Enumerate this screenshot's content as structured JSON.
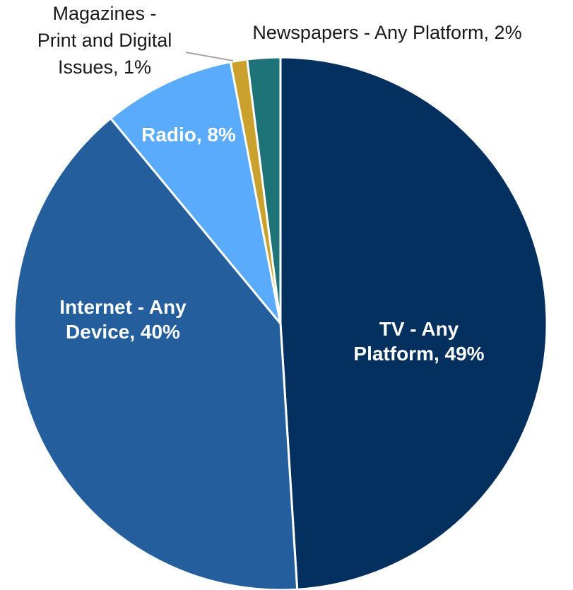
{
  "chart_data": {
    "type": "pie",
    "start_angle_deg": 0,
    "direction": "clockwise",
    "slices": [
      {
        "label_lines": [
          "TV - Any",
          "Platform, 49%"
        ],
        "value": 49,
        "color": "#04305f"
      },
      {
        "label_lines": [
          "Internet - Any",
          "Device, 40%"
        ],
        "value": 40,
        "color": "#245e9d"
      },
      {
        "label_lines": [
          "Radio, 8%"
        ],
        "value": 8,
        "color": "#5aabfb"
      },
      {
        "label_lines": [
          "Magazines -",
          "Print and Digital",
          "Issues, 1%"
        ],
        "value": 1,
        "color": "#c9a12c"
      },
      {
        "label_lines": [
          "Newspapers - Any Platform, 2%"
        ],
        "value": 2,
        "color": "#1e7378"
      }
    ]
  }
}
